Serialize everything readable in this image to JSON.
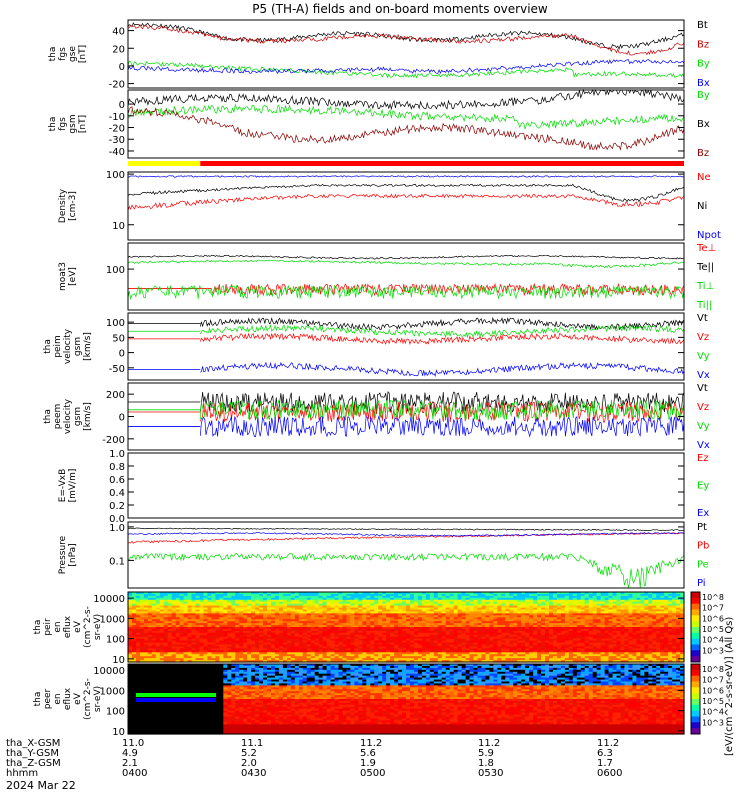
{
  "title": "P5 (TH-A) fields and on-board moments overview",
  "date": "2024 Mar 22",
  "chart_data": {
    "type": "line",
    "time_axis": {
      "start": "0400",
      "end": "0600",
      "ticks": [
        "0400",
        "0430",
        "0500",
        "0530",
        "0600"
      ]
    },
    "orbit_rows": [
      {
        "label": "tha_X-GSM",
        "values": [
          "11.0",
          "11.1",
          "11.2",
          "11.2",
          "11.2"
        ]
      },
      {
        "label": "tha_Y-GSM",
        "values": [
          "4.9",
          "5.2",
          "5.6",
          "5.9",
          "6.3"
        ]
      },
      {
        "label": "tha_Z-GSM",
        "values": [
          "2.1",
          "2.0",
          "1.9",
          "1.8",
          "1.7"
        ]
      },
      {
        "label": "hhmm",
        "values": [
          "0400",
          "0430",
          "0500",
          "0530",
          "0600"
        ]
      }
    ],
    "mode_bar": {
      "colors": [
        "#ffff00",
        "#ff0000"
      ],
      "switch_fraction": 0.13
    },
    "panels": [
      {
        "id": "fgs-gse",
        "ylabel": [
          "tha",
          "fgs",
          "gse",
          "[nT]"
        ],
        "ylim": [
          -25,
          52
        ],
        "ticks": [
          40,
          20,
          0,
          -20
        ],
        "series": [
          {
            "name": "Bt",
            "color": "#000000"
          },
          {
            "name": "Bz",
            "color": "#cc0000"
          },
          {
            "name": "By",
            "color": "#00dd00"
          },
          {
            "name": "Bx",
            "color": "#0000ff"
          }
        ]
      },
      {
        "id": "fgs-gsm",
        "ylabel": [
          "tha",
          "fgs",
          "gsm",
          "[nT]"
        ],
        "ylim": [
          -46,
          12
        ],
        "ticks": [
          0,
          -10,
          -20,
          -30,
          -40
        ],
        "series": [
          {
            "name": "By",
            "color": "#00dd00"
          },
          {
            "name": "Bx",
            "color": "#000000"
          },
          {
            "name": "Bz",
            "color": "#8b0000"
          }
        ]
      },
      {
        "id": "density",
        "ylabel": [
          "Density",
          "[cm-3]"
        ],
        "log": true,
        "ylim": [
          5,
          110
        ],
        "ticks": [
          100,
          10
        ],
        "series": [
          {
            "name": "Ne",
            "color": "#ff0000"
          },
          {
            "name": "Ni",
            "color": "#000000"
          },
          {
            "name": "Npot",
            "color": "#0000ff"
          }
        ]
      },
      {
        "id": "temp",
        "ylabel": [
          "moat3",
          "[eV]"
        ],
        "log": true,
        "ylim": [
          8,
          500
        ],
        "ticks": [
          100
        ],
        "series": [
          {
            "name": "Te⊥",
            "color": "#ff0000"
          },
          {
            "name": "Te||",
            "color": "#000000"
          },
          {
            "name": "Ti⊥",
            "color": "#00dd00"
          },
          {
            "name": "Ti||",
            "color": "#00dd00"
          }
        ]
      },
      {
        "id": "peim",
        "ylabel": [
          "tha",
          "peim",
          "velocity",
          "gsm",
          "[km/s]"
        ],
        "ylim": [
          -90,
          130
        ],
        "ticks": [
          100,
          50,
          0,
          -50
        ],
        "series": [
          {
            "name": "Vt",
            "color": "#000000"
          },
          {
            "name": "Vz",
            "color": "#ff0000"
          },
          {
            "name": "Vy",
            "color": "#00dd00"
          },
          {
            "name": "Vx",
            "color": "#0000ff"
          }
        ]
      },
      {
        "id": "peem",
        "ylabel": [
          "tha",
          "peem",
          "velocity",
          "gsm",
          "[km/s]"
        ],
        "ylim": [
          -300,
          300
        ],
        "ticks": [
          200,
          0,
          -200
        ],
        "series": [
          {
            "name": "Vt",
            "color": "#000000"
          },
          {
            "name": "Vz",
            "color": "#ff0000"
          },
          {
            "name": "Vy",
            "color": "#00dd00"
          },
          {
            "name": "Vx",
            "color": "#0000ff"
          }
        ]
      },
      {
        "id": "efield",
        "ylabel": [
          "E=-VxB",
          "[mV/m]"
        ],
        "ylim": [
          0,
          1
        ],
        "ticks": [
          "1.0",
          "0.8",
          "0.6",
          "0.4",
          "0.2",
          "0.0"
        ],
        "series": [
          {
            "name": "Ez",
            "color": "#ff0000"
          },
          {
            "name": "Ey",
            "color": "#00dd00"
          },
          {
            "name": "Ex",
            "color": "#0000ff"
          }
        ]
      },
      {
        "id": "pressure",
        "ylabel": [
          "Pressure",
          "[nPa]"
        ],
        "log": true,
        "ylim": [
          0.015,
          1.4
        ],
        "ticks": [
          "1.0",
          "0.1"
        ],
        "series": [
          {
            "name": "Pt",
            "color": "#000000"
          },
          {
            "name": "Pb",
            "color": "#ff0000"
          },
          {
            "name": "Pe",
            "color": "#00dd00"
          },
          {
            "name": "Pi",
            "color": "#0000ff"
          }
        ]
      },
      {
        "id": "peir",
        "type": "heatmap",
        "ylabel": [
          "tha",
          "peir",
          "en",
          "eflux",
          "eV",
          "(cm^2-s-",
          "sr-eV)"
        ],
        "log": true,
        "ylim": [
          7,
          20000
        ],
        "ticks": [
          "10000",
          "1000",
          "100",
          "10"
        ]
      },
      {
        "id": "peer",
        "type": "heatmap",
        "ylabel": [
          "tha",
          "peer",
          "en",
          "eflux",
          "eV",
          "(cm^2-s-",
          "sr-eV)"
        ],
        "log": true,
        "ylim": [
          7,
          20000
        ],
        "ticks": [
          "10000",
          "1000",
          "100",
          "10"
        ]
      }
    ],
    "colorbar": {
      "label": "[eV/(cm^2-s-sr-eV)] (All Qs)",
      "ticks": [
        "10^8",
        "10^7",
        "10^6",
        "10^5",
        "10^4",
        "10^3"
      ]
    }
  }
}
